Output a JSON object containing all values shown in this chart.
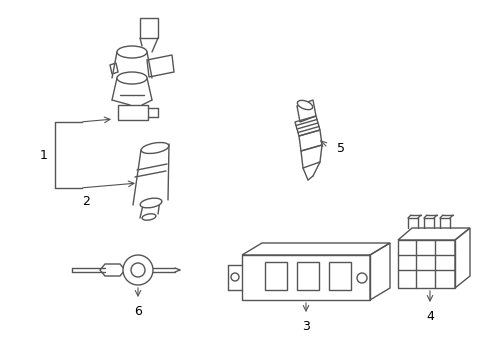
{
  "background_color": "#ffffff",
  "line_color": "#555555",
  "line_width": 1.0,
  "label_fontsize": 9,
  "figsize": [
    4.89,
    3.6
  ],
  "dpi": 100
}
